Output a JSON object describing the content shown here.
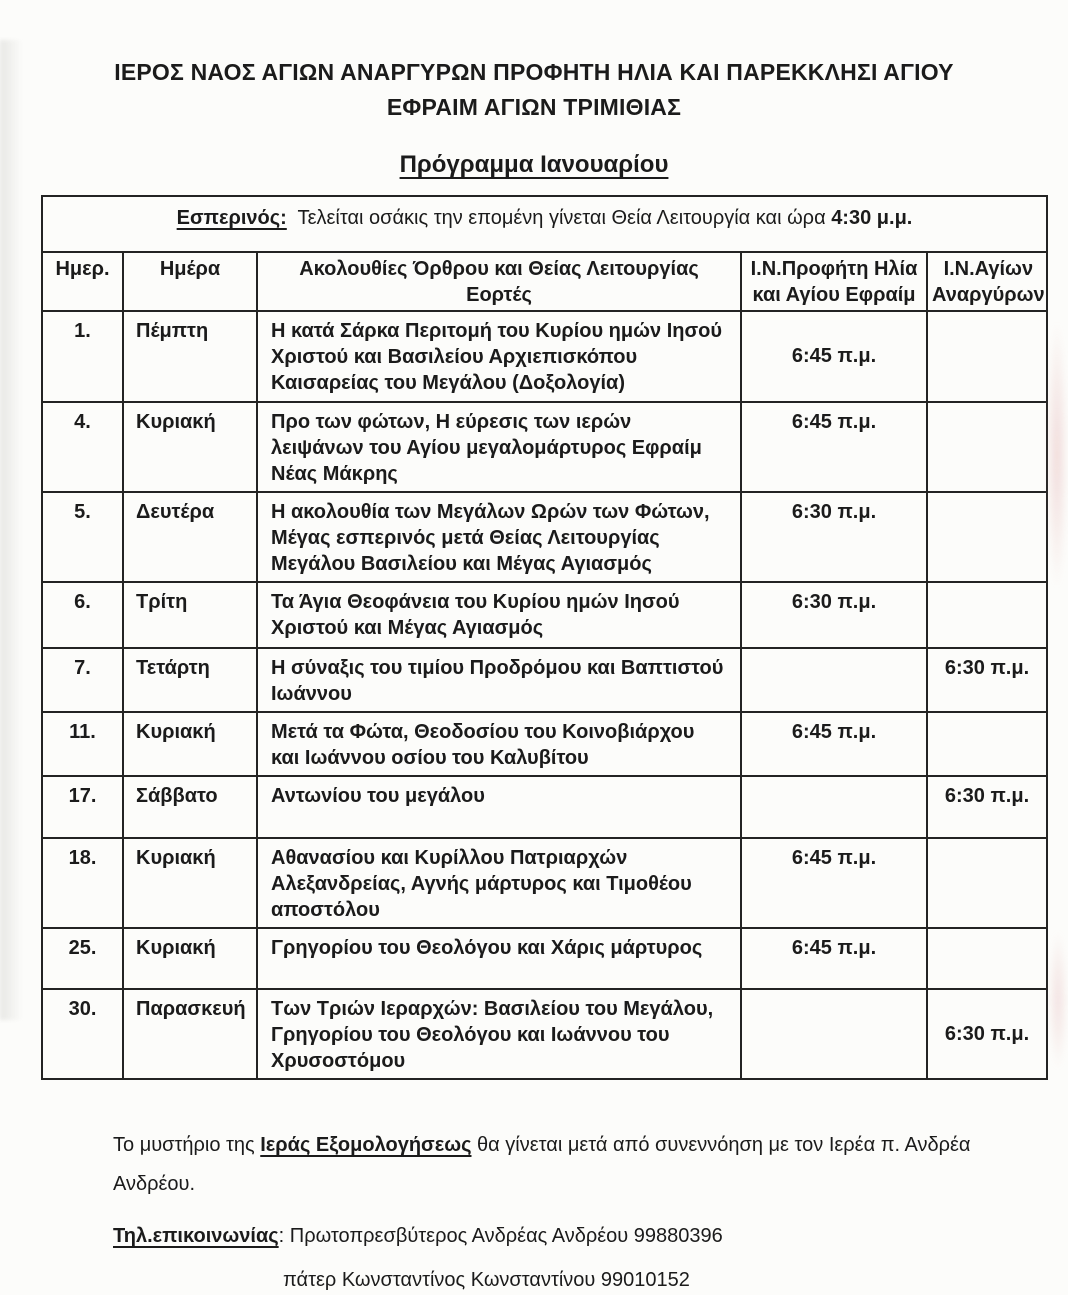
{
  "document": {
    "title_line1": "ΙΕΡΟΣ ΝΑΟΣ ΑΓΙΩΝ ΑΝΑΡΓΥΡΩΝ ΠΡΟΦΗΤΗ ΗΛΙΑ ΚΑΙ ΠΑΡΕΚΚΛΗΣΙ ΑΓΙΟΥ",
    "title_line2": "ΕΦΡΑΙΜ ΑΓΙΩΝ ΤΡΙΜΙΘΙΑΣ",
    "subtitle": "Πρόγραμμα Ιανουαρίου"
  },
  "schedule_table": {
    "vespers_note_label": "Εσπερινός:",
    "vespers_note_text": "  Τελείται οσάκις την επομένη γίνεται Θεία Λειτουργία και ώρα ",
    "vespers_note_time": "4:30 μ.μ.",
    "headers": {
      "date": "Ημερ.",
      "day": "Ημέρα",
      "services_line1": "Ακολουθίες Όρθρου και Θείας Λειτουργίας",
      "services_line2": "Εορτές",
      "church1": "Ι.Ν.Προφήτη Ηλία και Αγίου Εφραίμ",
      "church2": "Ι.Ν.Αγίων Αναργύρων"
    },
    "rows": [
      {
        "date": "1.",
        "day": "Πέμπτη",
        "feast": "Η κατά Σάρκα Περιτομή του Κυρίου ημών Ιησού Χριστού και Βασιλείου Αρχιεπισκόπου Καισαρείας του Μεγάλου (Δοξολογία)",
        "church1_time": "6:45 π.μ.",
        "church2_time": ""
      },
      {
        "date": "4.",
        "day": "Κυριακή",
        "feast": "Προ των φώτων, Η εύρεσις  των ιερών λειψάνων του Αγίου μεγαλομάρτυρος Εφραίμ Νέας Μάκρης",
        "church1_time": "6:45 π.μ.",
        "church2_time": ""
      },
      {
        "date": "5.",
        "day": "Δευτέρα",
        "feast": "Η ακολουθία των Μεγάλων Ωρών των Φώτων, Μέγας εσπερινός μετά Θείας Λειτουργίας Μεγάλου Βασιλείου και Μέγας Αγιασμός",
        "church1_time": "6:30 π.μ.",
        "church2_time": ""
      },
      {
        "date": "6.",
        "day": "Τρίτη",
        "feast": "Τα Άγια Θεοφάνεια του Κυρίου ημών Ιησού Χριστού και Μέγας Αγιασμός",
        "church1_time": "6:30 π.μ.",
        "church2_time": ""
      },
      {
        "date": "7.",
        "day": "Τετάρτη",
        "feast": "Η σύναξις του τιμίου Προδρόμου και Βαπτιστού Ιωάννου",
        "church1_time": "",
        "church2_time": "6:30 π.μ."
      },
      {
        "date": "11.",
        "day": "Κυριακή",
        "feast": "Μετά τα Φώτα, Θεοδοσίου του Κοινοβιάρχου και Ιωάννου οσίου του Καλυβίτου",
        "church1_time": "6:45 π.μ.",
        "church2_time": ""
      },
      {
        "date": "17.",
        "day": "Σάββατο",
        "feast": "Αντωνίου του μεγάλου",
        "church1_time": "",
        "church2_time": "6:30 π.μ."
      },
      {
        "date": "18.",
        "day": "Κυριακή",
        "feast": "Αθανασίου και Κυρίλλου Πατριαρχών Αλεξανδρείας,  Αγνής μάρτυρος και Τιμοθέου αποστόλου",
        "church1_time": "6:45 π.μ.",
        "church2_time": ""
      },
      {
        "date": "25.",
        "day": "Κυριακή",
        "feast": "Γρηγορίου του Θεολόγου και Χάρις μάρτυρος",
        "church1_time": "6:45 π.μ.",
        "church2_time": ""
      },
      {
        "date": "30.",
        "day": "Παρασκευή",
        "feast": "Των Τριών Ιεραρχών: Βασιλείου του Μεγάλου, Γρηγορίου του Θεολόγου και Ιωάννου του Χρυσοστόμου",
        "church1_time": "",
        "church2_time": "6:30 π.μ."
      }
    ]
  },
  "footer": {
    "confession_pre": "Το μυστήριο της ",
    "confession_bold": "Ιεράς Εξομολογήσεως",
    "confession_post": " θα γίνεται μετά από συνεννόηση με τον Ιερέα π. Ανδρέα Ανδρέου.",
    "phone_label": "Τηλ.επικοινωνίας",
    "phone_text": ": Πρωτοπρεσβύτερος Ανδρέας Ανδρέου 99880396",
    "phone2_text": "πάτερ Κωνσταντίνος Κωνσταντίνου 99010152"
  },
  "colors": {
    "ink": "#1b1b1b",
    "border": "#232323",
    "paper": "#fcfcfa"
  }
}
